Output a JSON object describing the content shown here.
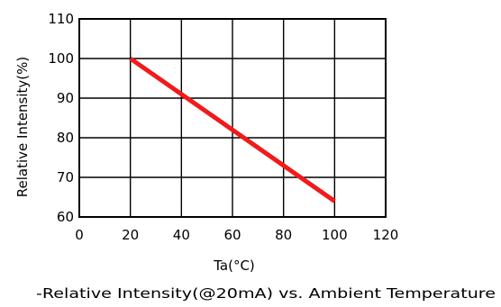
{
  "chart_data": {
    "type": "line",
    "xlabel": "Ta(°C)",
    "ylabel": "Relative Intensity(%)",
    "caption": "-Relative Intensity(@20mA) vs. Ambient Temperature",
    "xlim": [
      0,
      120
    ],
    "ylim": [
      60,
      110
    ],
    "x_ticks": [
      "0",
      "20",
      "40",
      "60",
      "80",
      "100",
      "120"
    ],
    "y_ticks": [
      "60",
      "70",
      "80",
      "90",
      "100",
      "110"
    ],
    "grid": true,
    "series": [
      {
        "x": [
          20,
          100
        ],
        "y": [
          100,
          64
        ],
        "color": "#ee1c1c"
      }
    ]
  }
}
